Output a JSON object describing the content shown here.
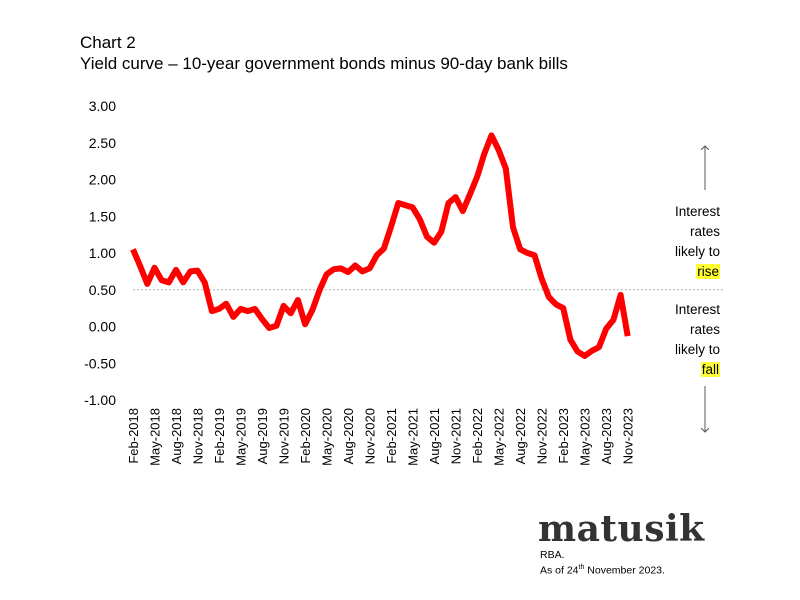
{
  "header": {
    "title": "Chart 2",
    "subtitle": "Yield curve – 10-year government bonds minus 90-day bank bills"
  },
  "annotations": {
    "rise": {
      "lines": [
        "Interest",
        "rates",
        "likely to"
      ],
      "highlight": "rise"
    },
    "fall": {
      "lines": [
        "Interest",
        "rates",
        "likely to"
      ],
      "highlight": "fall"
    },
    "highlight_color": "#ffff33"
  },
  "footer": {
    "logo": "matusik",
    "source": "RBA.",
    "as_of_prefix": "As of 24",
    "as_of_sup": "th",
    "as_of_suffix": " November 2023."
  },
  "chart_data": {
    "type": "line",
    "title": "Yield curve – 10-year government bonds minus 90-day bank bills",
    "xlabel": "",
    "ylabel": "",
    "ylim": [
      -1.0,
      3.0
    ],
    "yticks": [
      3.0,
      2.5,
      2.0,
      1.5,
      1.0,
      0.5,
      0.0,
      -0.5,
      -1.0
    ],
    "ytick_labels": [
      "3.00",
      "2.50",
      "2.00",
      "1.50",
      "1.00",
      "0.50",
      "0.00",
      "-0.50",
      "-1.00"
    ],
    "xtick_labels": [
      "Feb-2018",
      "May-2018",
      "Aug-2018",
      "Nov-2018",
      "Feb-2019",
      "May-2019",
      "Aug-2019",
      "Nov-2019",
      "Feb-2020",
      "May-2020",
      "Aug-2020",
      "Nov-2020",
      "Feb-2021",
      "May-2021",
      "Aug-2021",
      "Nov-2021",
      "Feb-2022",
      "May-2022",
      "Aug-2022",
      "Nov-2022",
      "Feb-2023",
      "May-2023",
      "Aug-2023",
      "Nov-2023"
    ],
    "reference_line": 0.5,
    "grid": false,
    "series_color": "#ff0000",
    "x": [
      "Feb-2018",
      "Mar-2018",
      "Apr-2018",
      "May-2018",
      "Jun-2018",
      "Jul-2018",
      "Aug-2018",
      "Sep-2018",
      "Oct-2018",
      "Nov-2018",
      "Dec-2018",
      "Jan-2019",
      "Feb-2019",
      "Mar-2019",
      "Apr-2019",
      "May-2019",
      "Jun-2019",
      "Jul-2019",
      "Aug-2019",
      "Sep-2019",
      "Oct-2019",
      "Nov-2019",
      "Dec-2019",
      "Jan-2020",
      "Feb-2020",
      "Mar-2020",
      "Apr-2020",
      "May-2020",
      "Jun-2020",
      "Jul-2020",
      "Aug-2020",
      "Sep-2020",
      "Oct-2020",
      "Nov-2020",
      "Dec-2020",
      "Jan-2021",
      "Feb-2021",
      "Mar-2021",
      "Apr-2021",
      "May-2021",
      "Jun-2021",
      "Jul-2021",
      "Aug-2021",
      "Sep-2021",
      "Oct-2021",
      "Nov-2021",
      "Dec-2021",
      "Jan-2022",
      "Feb-2022",
      "Mar-2022",
      "Apr-2022",
      "May-2022",
      "Jun-2022",
      "Jul-2022",
      "Aug-2022",
      "Sep-2022",
      "Oct-2022",
      "Nov-2022",
      "Dec-2022",
      "Jan-2023",
      "Feb-2023",
      "Mar-2023",
      "Apr-2023",
      "May-2023",
      "Jun-2023",
      "Jul-2023",
      "Aug-2023",
      "Sep-2023",
      "Oct-2023",
      "Nov-2023"
    ],
    "values": [
      1.05,
      0.82,
      0.58,
      0.8,
      0.63,
      0.6,
      0.77,
      0.6,
      0.75,
      0.76,
      0.6,
      0.21,
      0.24,
      0.31,
      0.13,
      0.24,
      0.21,
      0.24,
      0.1,
      -0.02,
      0.01,
      0.28,
      0.18,
      0.36,
      0.03,
      0.22,
      0.49,
      0.71,
      0.78,
      0.79,
      0.74,
      0.83,
      0.75,
      0.79,
      0.97,
      1.06,
      1.36,
      1.68,
      1.65,
      1.62,
      1.46,
      1.22,
      1.14,
      1.29,
      1.68,
      1.76,
      1.57,
      1.8,
      2.04,
      2.35,
      2.6,
      2.4,
      2.15,
      1.35,
      1.05,
      1.0,
      0.97,
      0.65,
      0.4,
      0.3,
      0.25,
      -0.18,
      -0.34,
      -0.4,
      -0.33,
      -0.28,
      -0.03,
      0.09,
      0.43,
      -0.13
    ]
  }
}
